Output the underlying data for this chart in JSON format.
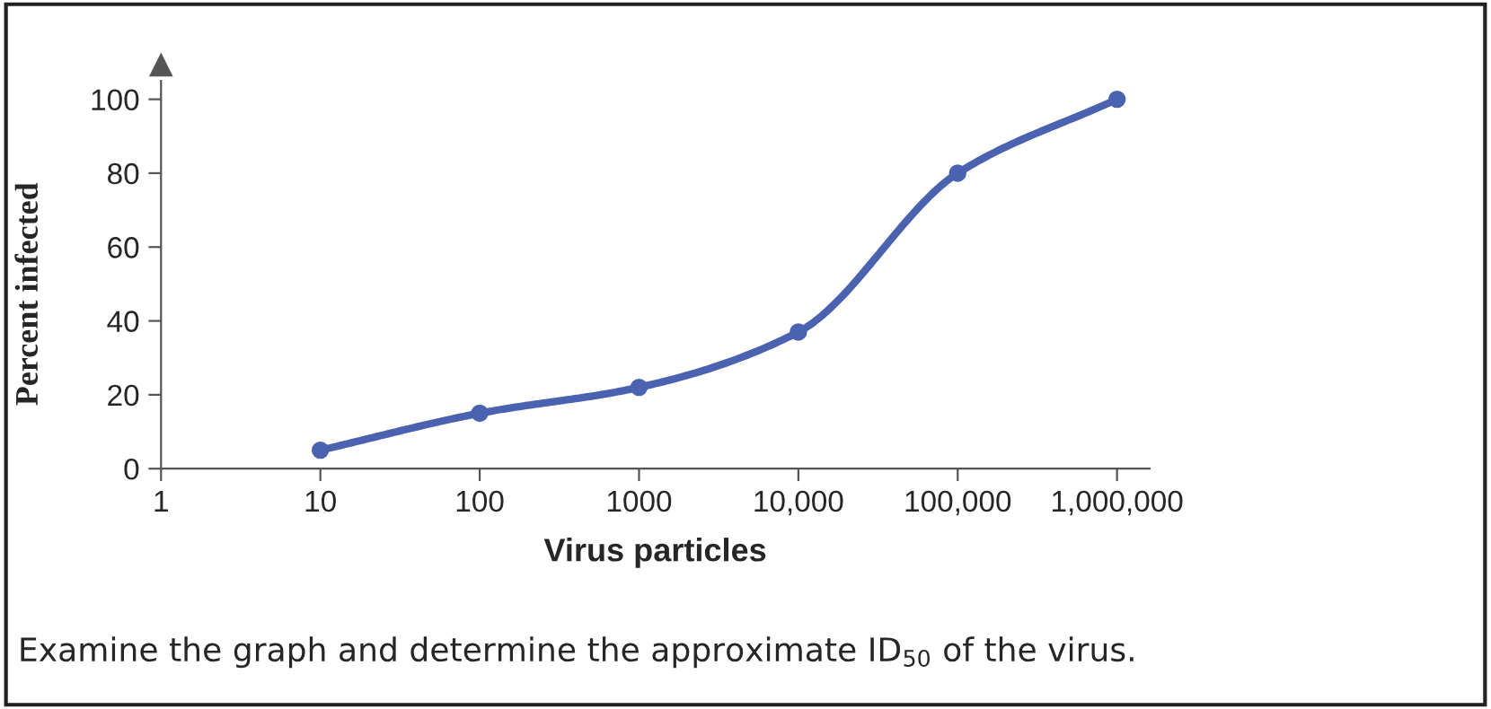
{
  "chart_data": {
    "type": "line",
    "x": [
      10,
      100,
      1000,
      10000,
      100000,
      1000000
    ],
    "series": [
      {
        "color": "#4a62b0",
        "values": [
          5,
          15,
          22,
          37,
          80,
          100
        ]
      }
    ],
    "xlabel": "Virus particles",
    "ylabel": "Percent infected",
    "log": "x",
    "xlim": [
      1,
      1600000
    ],
    "ylim": [
      0,
      105
    ],
    "xticks": [
      1,
      10,
      100,
      1000,
      {
        "value": 10000,
        "label": "10,000"
      },
      {
        "value": 100000,
        "label": "100,000"
      },
      {
        "value": 1000000,
        "label": "1,000,000"
      }
    ],
    "yticks": [
      0,
      20,
      40,
      60,
      80,
      100
    ],
    "marker": "circle",
    "line_style": "solid",
    "grid": false,
    "legend": false,
    "annotations": [
      "Examine the graph and determine the approximate ID$_{50}$ of the virus."
    ]
  }
}
